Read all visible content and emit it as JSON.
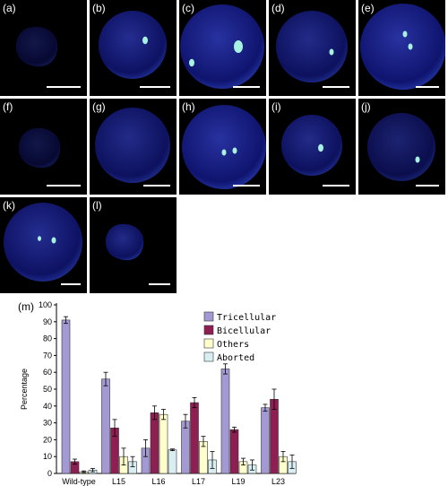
{
  "panels": [
    {
      "label": "(a)"
    },
    {
      "label": "(b)"
    },
    {
      "label": "(c)"
    },
    {
      "label": "(d)"
    },
    {
      "label": "(e)"
    },
    {
      "label": "(f)"
    },
    {
      "label": "(g)"
    },
    {
      "label": "(h)"
    },
    {
      "label": "(i)"
    },
    {
      "label": "(j)"
    },
    {
      "label": "(k)"
    },
    {
      "label": "(l)"
    }
  ],
  "chart_label": "(m)",
  "chart_data": {
    "type": "bar",
    "title": "",
    "xlabel": "",
    "ylabel": "Percentage",
    "ylim": [
      0,
      100
    ],
    "yticks": [
      "0",
      "10",
      "20",
      "30",
      "40",
      "50",
      "60",
      "70",
      "80",
      "90",
      "100"
    ],
    "categories": [
      "Wild-type",
      "L15",
      "L16",
      "L17",
      "L19",
      "L23"
    ],
    "legend_position": "top-right",
    "series": [
      {
        "name": "Tricellular",
        "color": "#a49ad3",
        "values": [
          91,
          56,
          15,
          31,
          62,
          39
        ],
        "errors": [
          2,
          4,
          5,
          4,
          3,
          2
        ]
      },
      {
        "name": "Bicellular",
        "color": "#8e1f52",
        "values": [
          7,
          27,
          36,
          42,
          26,
          44
        ],
        "errors": [
          1.5,
          5,
          4,
          3,
          1.5,
          6
        ]
      },
      {
        "name": "Others",
        "color": "#ffffcc",
        "values": [
          1,
          10,
          35,
          19,
          7,
          10
        ],
        "errors": [
          0.5,
          5,
          3,
          3,
          2,
          3
        ]
      },
      {
        "name": "Aborted",
        "color": "#d9eef2",
        "values": [
          2,
          7,
          14,
          8,
          5,
          7
        ],
        "errors": [
          1,
          3,
          0.5,
          5,
          3,
          4
        ]
      }
    ]
  }
}
